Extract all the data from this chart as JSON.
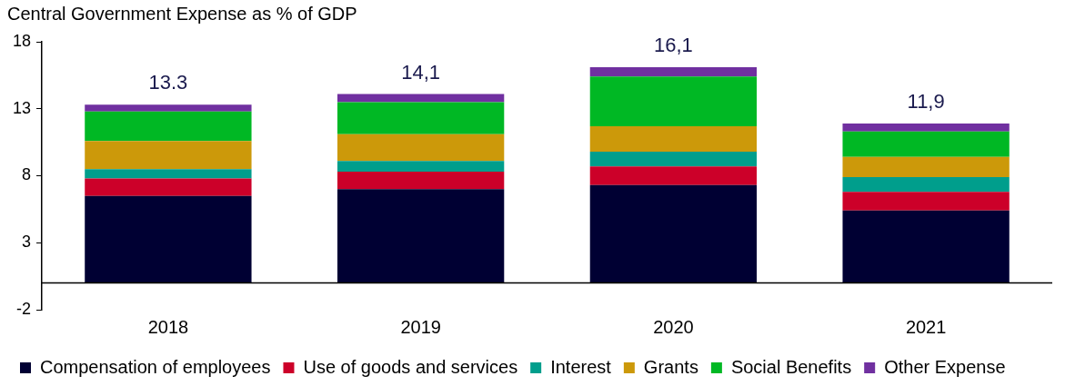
{
  "chart_data": {
    "type": "bar",
    "title": "Central Government Expense as % of GDP",
    "stacked": true,
    "categories": [
      "2018",
      "2019",
      "2020",
      "2021"
    ],
    "series": [
      {
        "name": "Compensation of employees",
        "color": "#000033",
        "values": [
          6.5,
          7.0,
          7.3,
          5.4
        ]
      },
      {
        "name": "Use of goods and services",
        "color": "#cc0029",
        "values": [
          1.3,
          1.3,
          1.4,
          1.4
        ]
      },
      {
        "name": "Interest",
        "color": "#009e8c",
        "values": [
          0.7,
          0.8,
          1.1,
          1.1
        ]
      },
      {
        "name": "Grants",
        "color": "#cc990a",
        "values": [
          2.1,
          2.0,
          1.9,
          1.5
        ]
      },
      {
        "name": "Social Benefits",
        "color": "#00b824",
        "values": [
          2.2,
          2.4,
          3.7,
          1.9
        ]
      },
      {
        "name": "Other Expense",
        "color": "#7030a0",
        "values": [
          0.5,
          0.6,
          0.7,
          0.6
        ]
      }
    ],
    "totals": [
      "13.3",
      "14,1",
      "16,1",
      "11,9"
    ],
    "ylim": [
      -2,
      18
    ],
    "yticks": [
      -2,
      3,
      8,
      13,
      18
    ],
    "grid": false,
    "legend": "bottom"
  }
}
